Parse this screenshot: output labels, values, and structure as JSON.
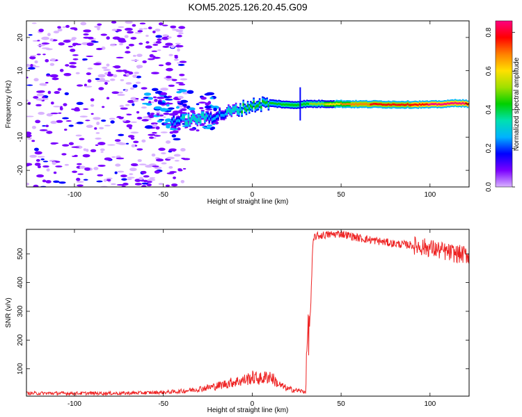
{
  "figure": {
    "title": "KOM5.2025.126.20.45.G09"
  },
  "chart_data": [
    {
      "type": "heatmap",
      "title": "",
      "xlabel": "Height of straight line (km)",
      "ylabel": "Frequency (Hz)",
      "xlim": [
        -127,
        122
      ],
      "ylim": [
        -25,
        25
      ],
      "xticks": [
        -100,
        -50,
        0,
        50,
        100
      ],
      "yticks": [
        -20,
        -10,
        0,
        10,
        20
      ],
      "colorbar": {
        "label": "Normalized spectral amplitude",
        "range": [
          0.0,
          0.86
        ],
        "ticks": [
          0.0,
          0.2,
          0.4,
          0.6,
          0.8
        ],
        "colormap": [
          "#d9b3ff",
          "#7a00ff",
          "#0000ff",
          "#00b3ff",
          "#00e0b0",
          "#00d000",
          "#a0e000",
          "#ffe000",
          "#ff8000",
          "#ff0000",
          "#ff0080"
        ]
      },
      "signal_band": [
        {
          "x": -45,
          "freq": -5.0,
          "amp": 0.25
        },
        {
          "x": -40,
          "freq": -5.0,
          "amp": 0.3
        },
        {
          "x": -35,
          "freq": -4.8,
          "amp": 0.35
        },
        {
          "x": -30,
          "freq": -4.5,
          "amp": 0.35
        },
        {
          "x": -25,
          "freq": -4.0,
          "amp": 0.3
        },
        {
          "x": -20,
          "freq": -3.5,
          "amp": 0.3
        },
        {
          "x": -15,
          "freq": -2.8,
          "amp": 0.3
        },
        {
          "x": -10,
          "freq": -2.0,
          "amp": 0.35
        },
        {
          "x": -5,
          "freq": -1.2,
          "amp": 0.4
        },
        {
          "x": 0,
          "freq": -0.5,
          "amp": 0.4
        },
        {
          "x": 5,
          "freq": 0.0,
          "amp": 0.4
        },
        {
          "x": 10,
          "freq": 0.2,
          "amp": 0.42
        },
        {
          "x": 15,
          "freq": 0.0,
          "amp": 0.42
        },
        {
          "x": 20,
          "freq": -0.3,
          "amp": 0.45
        },
        {
          "x": 25,
          "freq": -0.3,
          "amp": 0.45
        },
        {
          "x": 30,
          "freq": 0.0,
          "amp": 0.45
        },
        {
          "x": 40,
          "freq": 0.0,
          "amp": 0.55
        },
        {
          "x": 50,
          "freq": 0.0,
          "amp": 0.65
        },
        {
          "x": 60,
          "freq": -0.1,
          "amp": 0.7
        },
        {
          "x": 70,
          "freq": -0.1,
          "amp": 0.75
        },
        {
          "x": 80,
          "freq": -0.2,
          "amp": 0.78
        },
        {
          "x": 90,
          "freq": -0.2,
          "amp": 0.8
        },
        {
          "x": 100,
          "freq": -0.2,
          "amp": 0.82
        },
        {
          "x": 110,
          "freq": 0.0,
          "amp": 0.85
        },
        {
          "x": 115,
          "freq": 0.3,
          "amp": 0.86
        },
        {
          "x": 122,
          "freq": 0.0,
          "amp": 0.8
        }
      ]
    },
    {
      "type": "line",
      "title": "",
      "xlabel": "Height of straight line (km)",
      "ylabel": "SNR (v/v)",
      "xlim": [
        -127,
        122
      ],
      "ylim": [
        5,
        585
      ],
      "xticks": [
        -100,
        -50,
        0,
        50,
        100
      ],
      "yticks": [
        100,
        200,
        300,
        400,
        500
      ],
      "color": "#ee2222",
      "series": [
        {
          "x": [
            -127,
            -100,
            -75,
            -50,
            -40,
            -30,
            -20,
            -10,
            -5,
            0,
            5,
            10,
            15,
            20,
            25,
            30,
            31,
            32,
            33,
            34,
            35,
            40,
            50,
            60,
            70,
            80,
            90,
            100,
            110,
            115,
            122
          ],
          "values": [
            15,
            15,
            15,
            18,
            22,
            30,
            40,
            55,
            60,
            70,
            65,
            75,
            45,
            30,
            25,
            20,
            210,
            230,
            330,
            520,
            560,
            565,
            570,
            555,
            545,
            535,
            530,
            520,
            505,
            500,
            495
          ]
        }
      ]
    }
  ]
}
